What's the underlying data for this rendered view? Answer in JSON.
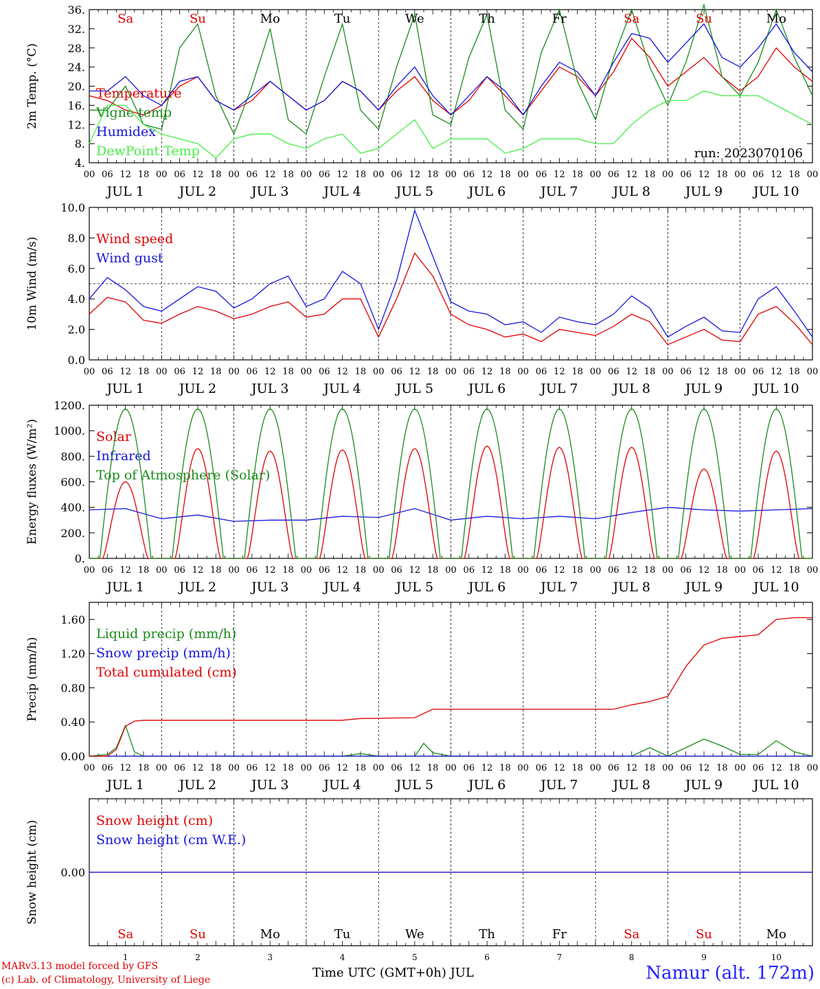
{
  "chart_data": {
    "type": "line",
    "x_unit_label": "hours UTC",
    "day_names": [
      "Sa",
      "Su",
      "Mo",
      "Tu",
      "We",
      "Th",
      "Fr",
      "Sa",
      "Su",
      "Mo"
    ],
    "weekend_flags": [
      true,
      true,
      false,
      false,
      false,
      false,
      false,
      true,
      true,
      false
    ],
    "day_labels": [
      "JUL 1",
      "JUL 2",
      "JUL 3",
      "JUL 4",
      "JUL 5",
      "JUL 6",
      "JUL 7",
      "JUL 8",
      "JUL 9",
      "JUL 10"
    ],
    "day_numbers": [
      "1",
      "2",
      "3",
      "4",
      "5",
      "6",
      "7",
      "8",
      "9",
      "10"
    ],
    "hour_ticks": [
      "00",
      "06",
      "12",
      "18"
    ],
    "panels": [
      {
        "ylabel": "2m Temp. (°C)",
        "ylim": [
          4,
          36
        ],
        "yticks": [
          "4.",
          "8.",
          "12.",
          "16.",
          "20.",
          "24.",
          "28.",
          "32.",
          "36."
        ],
        "annotation": "run: 2023070106",
        "series": [
          {
            "name": "Temperature",
            "color": "#e00000",
            "x": [
              0,
              6,
              12,
              18,
              24,
              30,
              36,
              42,
              48,
              54,
              60,
              66,
              72,
              78,
              84,
              90,
              96,
              102,
              108,
              114,
              120,
              126,
              132,
              138,
              144,
              150,
              156,
              162,
              168,
              174,
              180,
              186,
              192,
              198,
              204,
              210,
              216,
              222,
              228,
              234,
              240
            ],
            "y": [
              18,
              17,
              15,
              14,
              16,
              20,
              22,
              17,
              15,
              17,
              21,
              18,
              15,
              17,
              21,
              19,
              15,
              19,
              22,
              17,
              14,
              17,
              22,
              18,
              14,
              19,
              24,
              22,
              18,
              23,
              30,
              26,
              20,
              23,
              26,
              22,
              19,
              22,
              28,
              24,
              21
            ]
          },
          {
            "name": "Vigne temp",
            "color": "#1a8a1a",
            "x": [
              0,
              6,
              12,
              18,
              24,
              30,
              36,
              42,
              48,
              54,
              60,
              66,
              72,
              78,
              84,
              90,
              96,
              102,
              108,
              114,
              120,
              126,
              132,
              138,
              144,
              150,
              156,
              162,
              168,
              174,
              180,
              186,
              192,
              198,
              204,
              210,
              216,
              222,
              228,
              234,
              240
            ],
            "y": [
              15,
              15,
              20,
              12,
              11,
              28,
              33,
              18,
              10,
              20,
              32,
              13,
              10,
              22,
              33,
              15,
              11,
              24,
              35,
              14,
              12,
              26,
              35,
              15,
              11,
              27,
              36,
              21,
              13,
              26,
              36,
              24,
              16,
              25,
              37,
              22,
              18,
              25,
              36,
              26,
              18
            ]
          },
          {
            "name": "Humidex",
            "color": "#1515dd",
            "x": [
              0,
              6,
              12,
              18,
              24,
              30,
              36,
              42,
              48,
              54,
              60,
              66,
              72,
              78,
              84,
              90,
              96,
              102,
              108,
              114,
              120,
              126,
              132,
              138,
              144,
              150,
              156,
              162,
              168,
              174,
              180,
              186,
              192,
              198,
              204,
              210,
              216,
              222,
              228,
              234,
              240
            ],
            "y": [
              19,
              19,
              22,
              18,
              16,
              21,
              22,
              17,
              15,
              18,
              21,
              18,
              15,
              17,
              21,
              19,
              15,
              20,
              24,
              18,
              14,
              18,
              22,
              19,
              14,
              20,
              25,
              23,
              18,
              25,
              31,
              30,
              25,
              29,
              33,
              26,
              24,
              28,
              33,
              27,
              23
            ]
          },
          {
            "name": "DewPoint Temp",
            "color": "#44ee44",
            "x": [
              0,
              6,
              12,
              18,
              24,
              30,
              36,
              42,
              48,
              54,
              60,
              66,
              72,
              78,
              84,
              90,
              96,
              102,
              108,
              114,
              120,
              126,
              132,
              138,
              144,
              150,
              156,
              162,
              168,
              174,
              180,
              186,
              192,
              198,
              204,
              210,
              216,
              222,
              228,
              234,
              240
            ],
            "y": [
              8,
              16,
              16,
              12,
              10,
              9,
              8,
              5,
              9,
              10,
              10,
              8,
              7,
              9,
              10,
              6,
              7,
              10,
              13,
              7,
              9,
              9,
              9,
              6,
              7,
              9,
              9,
              9,
              8,
              8,
              12,
              15,
              17,
              17,
              19,
              18,
              18,
              18,
              16,
              14,
              12
            ]
          }
        ]
      },
      {
        "ylabel": "10m Wind (m/s)",
        "ylim": [
          0,
          10
        ],
        "yticks": [
          "0.0",
          "2.0",
          "4.0",
          "6.0",
          "8.0",
          "10.0"
        ],
        "reference_line": 5,
        "series": [
          {
            "name": "Wind speed",
            "color": "#e00000",
            "x": [
              0,
              6,
              12,
              18,
              24,
              30,
              36,
              42,
              48,
              54,
              60,
              66,
              72,
              78,
              84,
              90,
              96,
              102,
              108,
              114,
              120,
              126,
              132,
              138,
              144,
              150,
              156,
              162,
              168,
              174,
              180,
              186,
              192,
              198,
              204,
              210,
              216,
              222,
              228,
              234,
              240
            ],
            "y": [
              3.0,
              4.1,
              3.8,
              2.6,
              2.4,
              3.0,
              3.5,
              3.2,
              2.7,
              3.0,
              3.5,
              3.8,
              2.8,
              3.0,
              4.0,
              4.0,
              1.5,
              4.0,
              7.0,
              5.5,
              3.0,
              2.3,
              2.0,
              1.5,
              1.7,
              1.2,
              2.0,
              1.8,
              1.6,
              2.2,
              3.0,
              2.5,
              1.0,
              1.5,
              2.0,
              1.3,
              1.2,
              3.0,
              3.5,
              2.4,
              1.0
            ]
          },
          {
            "name": "Wind gust",
            "color": "#1515dd",
            "x": [
              0,
              6,
              12,
              18,
              24,
              30,
              36,
              42,
              48,
              54,
              60,
              66,
              72,
              78,
              84,
              90,
              96,
              102,
              108,
              114,
              120,
              126,
              132,
              138,
              144,
              150,
              156,
              162,
              168,
              174,
              180,
              186,
              192,
              198,
              204,
              210,
              216,
              222,
              228,
              234,
              240
            ],
            "y": [
              4.0,
              5.4,
              4.6,
              3.5,
              3.2,
              4.0,
              4.8,
              4.5,
              3.4,
              4.0,
              5.0,
              5.5,
              3.5,
              4.0,
              5.8,
              5.0,
              2.0,
              5.2,
              9.8,
              6.8,
              3.8,
              3.2,
              3.0,
              2.3,
              2.5,
              1.8,
              2.8,
              2.5,
              2.3,
              3.0,
              4.2,
              3.4,
              1.5,
              2.2,
              2.8,
              1.9,
              1.8,
              4.0,
              4.8,
              3.2,
              1.5
            ]
          }
        ]
      },
      {
        "ylabel": "Energy fluxes (W/m²)",
        "ylim": [
          0,
          1200
        ],
        "yticks": [
          "0.",
          "200.",
          "400.",
          "600.",
          "800.",
          "1000.",
          "1200."
        ],
        "series": [
          {
            "name": "Solar",
            "color": "#e00000",
            "daily_peaks": [
              600,
              860,
              840,
              850,
              860,
              880,
              870,
              870,
              700,
              840
            ]
          },
          {
            "name": "Infrared",
            "color": "#1515dd",
            "x": [
              0,
              12,
              24,
              36,
              48,
              60,
              72,
              84,
              96,
              108,
              120,
              132,
              144,
              156,
              168,
              180,
              192,
              204,
              216,
              228,
              240
            ],
            "y": [
              380,
              390,
              310,
              340,
              290,
              300,
              300,
              330,
              320,
              390,
              300,
              330,
              310,
              330,
              310,
              360,
              400,
              380,
              370,
              380,
              390
            ]
          },
          {
            "name": "Top of Atmosphere (Solar)",
            "color": "#1a8a1a",
            "daily_peak": 1170
          }
        ]
      },
      {
        "ylabel": "Precip (mm/h)",
        "ylim": [
          0,
          1.8
        ],
        "yticks": [
          "0.00",
          "0.40",
          "0.80",
          "1.20",
          "1.60"
        ],
        "series": [
          {
            "name": "Liquid precip (mm/h)",
            "color": "#1a8a1a",
            "x": [
              0,
              6,
              9,
              12,
              15,
              18,
              24,
              84,
              90,
              96,
              108,
              111,
              114,
              120,
              168,
              180,
              186,
              192,
              198,
              204,
              210,
              216,
              222,
              228,
              234,
              240
            ],
            "y": [
              0,
              0.02,
              0.1,
              0.36,
              0.05,
              0,
              0,
              0,
              0.03,
              0,
              0,
              0.15,
              0.04,
              0,
              0,
              0,
              0.1,
              0,
              0.1,
              0.2,
              0.12,
              0.02,
              0.02,
              0.18,
              0.05,
              0
            ]
          },
          {
            "name": "Snow precip (mm/h)",
            "color": "#1515dd",
            "x": [
              0,
              240
            ],
            "y": [
              0,
              0
            ]
          },
          {
            "name": "Total cumulated (cm)",
            "color": "#e00000",
            "x": [
              0,
              6,
              9,
              12,
              15,
              18,
              24,
              84,
              90,
              108,
              114,
              168,
              174,
              180,
              186,
              192,
              198,
              204,
              210,
              216,
              222,
              228,
              234,
              240
            ],
            "y": [
              0,
              0,
              0.08,
              0.35,
              0.41,
              0.42,
              0.42,
              0.42,
              0.44,
              0.45,
              0.55,
              0.55,
              0.55,
              0.6,
              0.64,
              0.7,
              1.05,
              1.3,
              1.38,
              1.4,
              1.42,
              1.6,
              1.62,
              1.62
            ]
          }
        ]
      },
      {
        "ylabel": "Snow height (cm)",
        "ylim": [
          -1,
          1
        ],
        "yticks": [
          "0.00"
        ],
        "series": [
          {
            "name": "Snow height (cm)",
            "color": "#e00000",
            "x": [
              0,
              240
            ],
            "y": [
              0,
              0
            ]
          },
          {
            "name": "Snow height (cm W.E.)",
            "color": "#1515dd",
            "x": [
              0,
              240
            ],
            "y": [
              0,
              0
            ]
          }
        ]
      }
    ]
  },
  "footer": {
    "credit_line1": "MARv3.13 model forced by GFS",
    "credit_line2": "(c) Lab. of Climatology, University of Liege",
    "x_title": "Time UTC (GMT+0h) JUL",
    "station": "Namur (alt. 172m)"
  },
  "colors": {
    "weekend": "#e00000",
    "weekday": "#000000"
  }
}
